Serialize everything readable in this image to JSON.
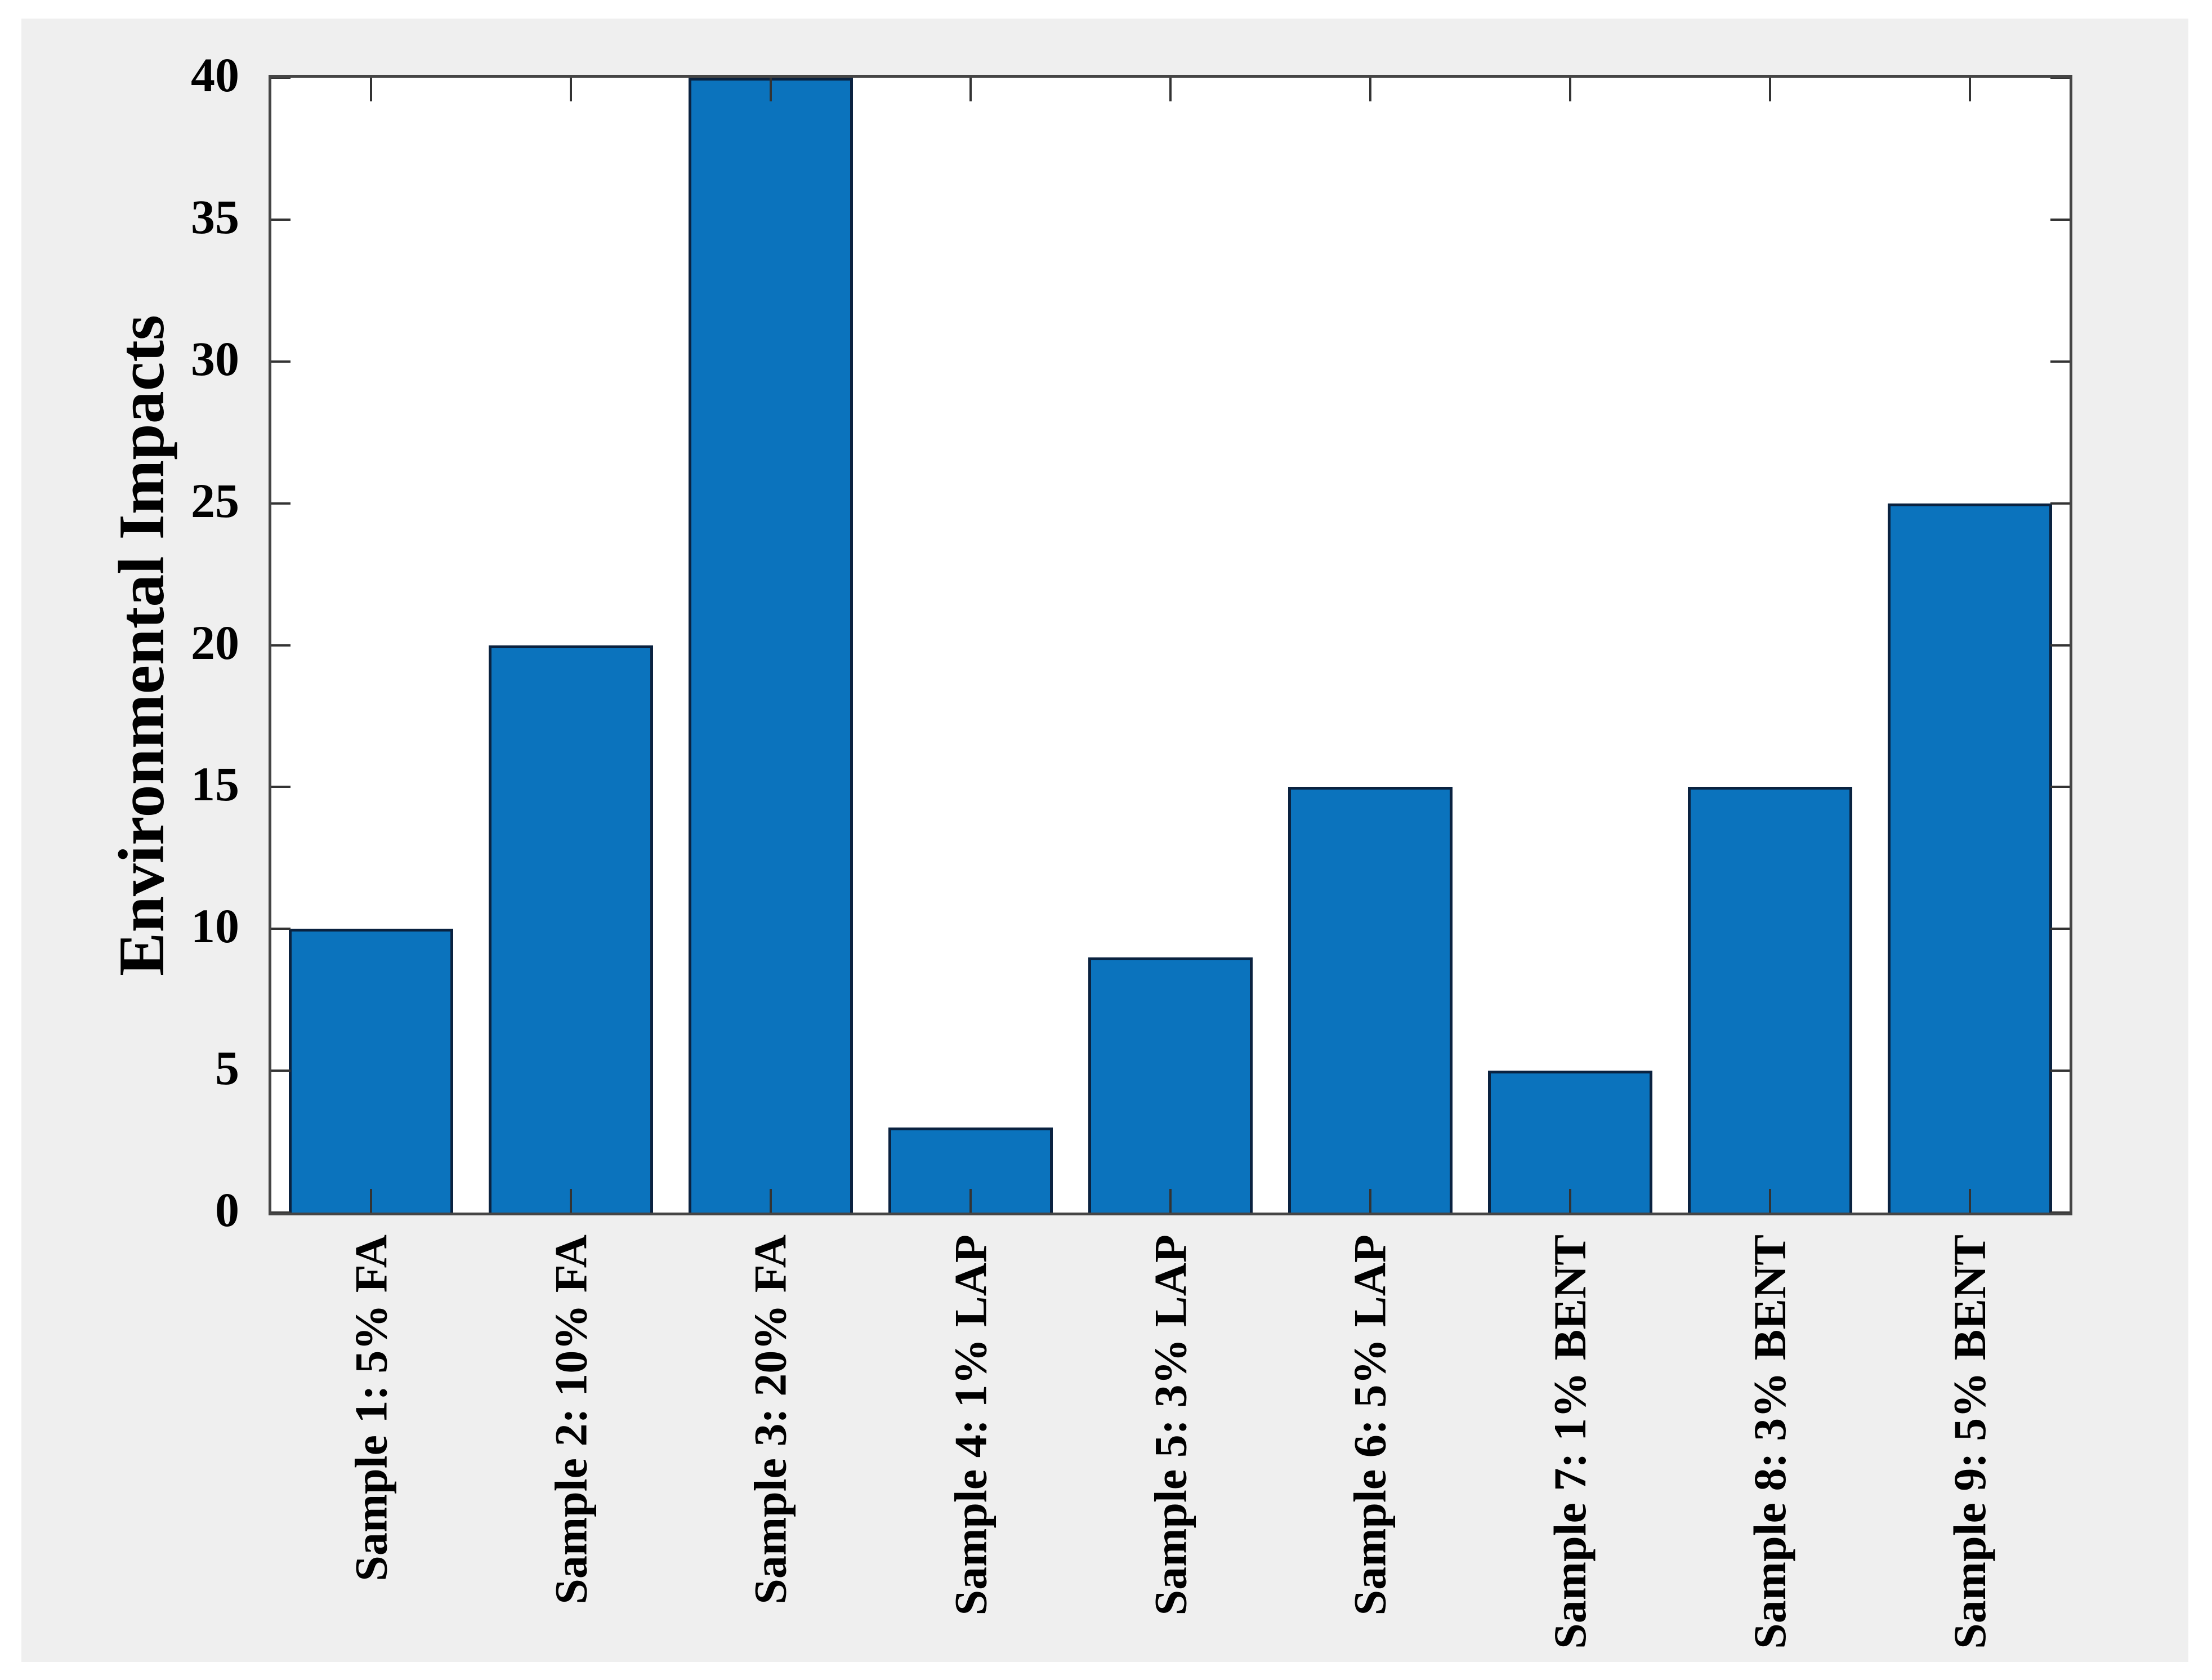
{
  "chart_data": {
    "type": "bar",
    "title": "",
    "xlabel": "",
    "ylabel": "Environmental Impacts",
    "categories": [
      "Sample 1: 5% FA",
      "Sample 2: 10% FA",
      "Sample 3: 20% FA",
      "Sample 4: 1% LAP",
      "Sample 5: 3% LAP",
      "Sample 6: 5% LAP",
      "Sample 7: 1% BENT",
      "Sample 8: 3% BENT",
      "Sample 9: 5% BENT"
    ],
    "values": [
      10,
      20,
      40,
      3,
      9,
      15,
      5,
      15,
      25
    ],
    "ylim": [
      0,
      40
    ],
    "yticks": [
      0,
      5,
      10,
      15,
      20,
      25,
      30,
      35,
      40
    ],
    "grid": false,
    "legend": "none",
    "tick_direction": "in",
    "box": true,
    "x_label_rotation_degrees": 90,
    "colors": {
      "bar_fill": "#0b73bd",
      "bar_edge": "#0a2240",
      "axis": "#454545",
      "tick": "#333333",
      "text": "#000000",
      "figure_background": "#efefef",
      "plot_background": "#ffffff",
      "page_background": "#ffffff"
    }
  }
}
